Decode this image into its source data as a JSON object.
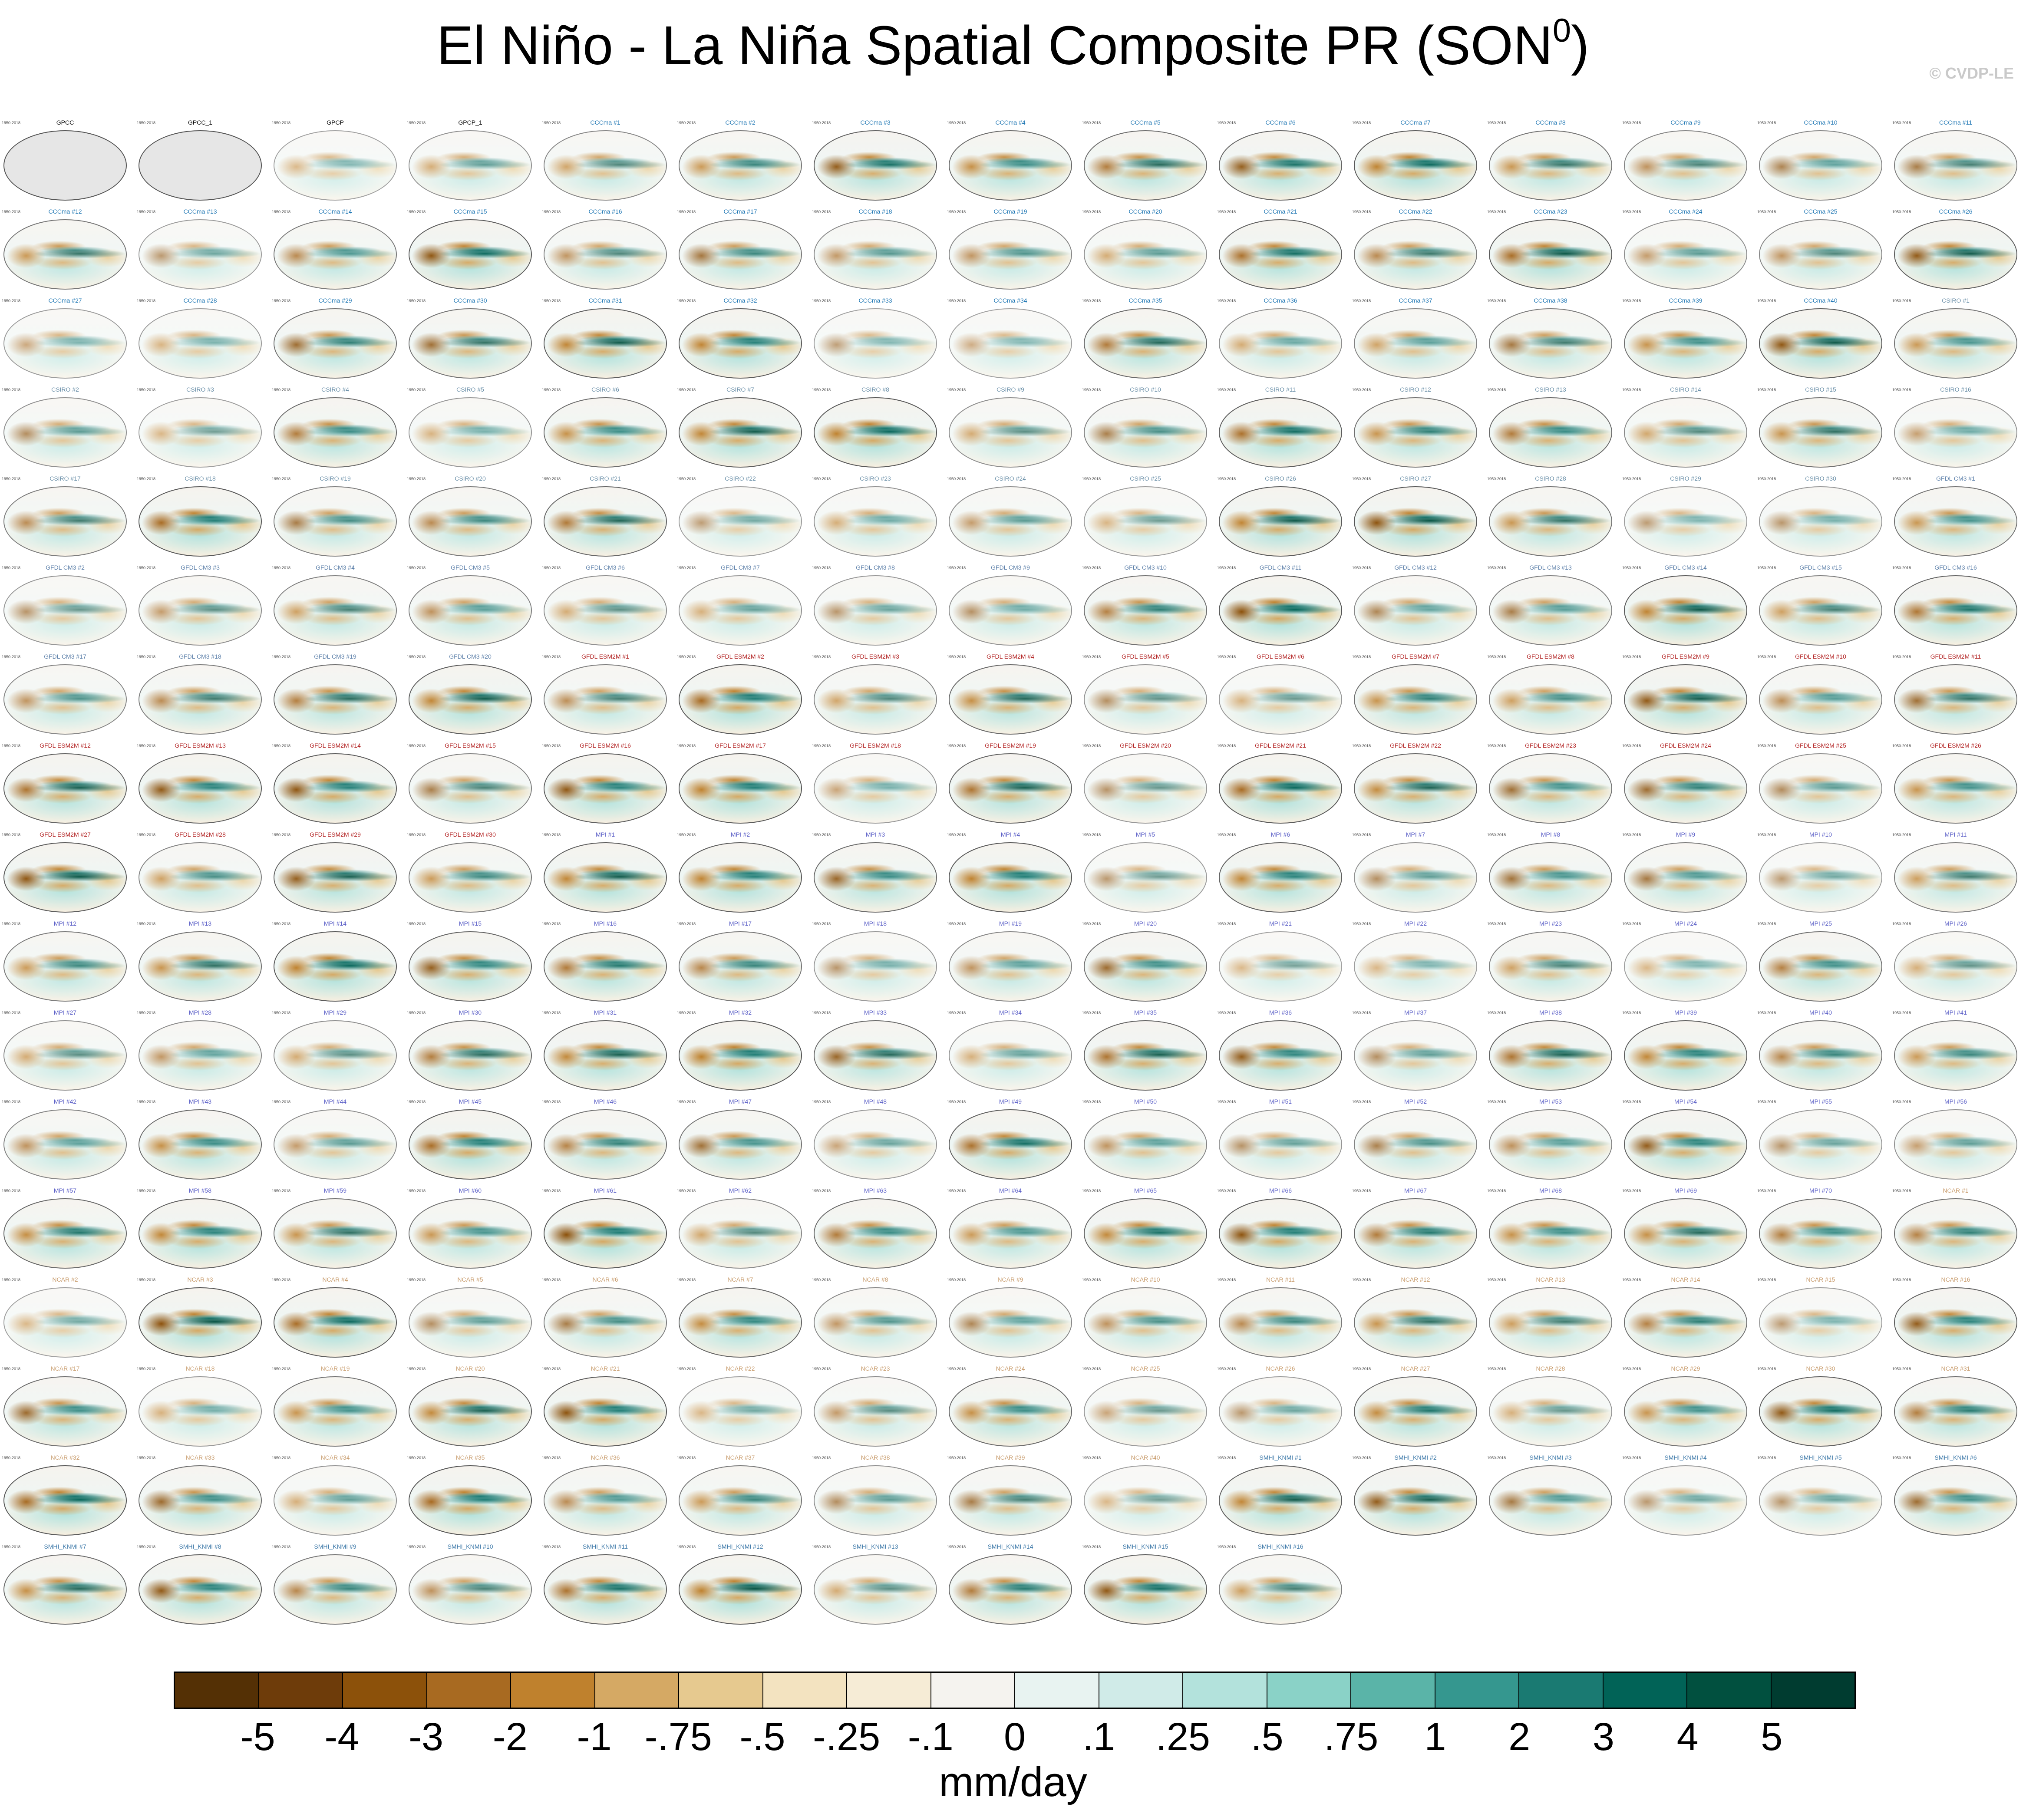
{
  "chart_data": {
    "type": "heatmap",
    "title": "El Niño - La Niña Spatial Composite PR (SON",
    "title_superscript": "0",
    "title_close": ")",
    "watermark": "© CVDP-LE",
    "variable": "PR",
    "season": "SON",
    "units": "mm/day",
    "colorbar": {
      "levels": [
        "-5",
        "-4",
        "-3",
        "-2",
        "-1",
        "-.75",
        "-.5",
        "-.25",
        "-.1",
        "0",
        ".1",
        ".25",
        ".5",
        ".75",
        "1",
        "2",
        "3",
        "4",
        "5"
      ],
      "colors": [
        "#543005",
        "#6e3c0a",
        "#8c510a",
        "#a86a21",
        "#bf812d",
        "#d5a964",
        "#e6c98f",
        "#f3e3c0",
        "#f6ecd6",
        "#f5f3ef",
        "#e8f3f1",
        "#d0ebe8",
        "#b3e2dc",
        "#8ad2c7",
        "#5ab4a8",
        "#35978f",
        "#1a7a72",
        "#016357",
        "#01503f",
        "#003c30"
      ]
    },
    "panel_period": "1950-2018",
    "panels": [
      {
        "title": "GPCC",
        "group": "obs"
      },
      {
        "title": "GPCC_1",
        "group": "obs"
      },
      {
        "title": "GPCP",
        "group": "obs"
      },
      {
        "title": "GPCP_1",
        "group": "obs"
      },
      {
        "title": "CCCma #1",
        "group": "cccma"
      },
      {
        "title": "CCCma #2",
        "group": "cccma"
      },
      {
        "title": "CCCma #3",
        "group": "cccma"
      },
      {
        "title": "CCCma #4",
        "group": "cccma"
      },
      {
        "title": "CCCma #5",
        "group": "cccma"
      },
      {
        "title": "CCCma #6",
        "group": "cccma"
      },
      {
        "title": "CCCma #7",
        "group": "cccma"
      },
      {
        "title": "CCCma #8",
        "group": "cccma"
      },
      {
        "title": "CCCma #9",
        "group": "cccma"
      },
      {
        "title": "CCCma #10",
        "group": "cccma"
      },
      {
        "title": "CCCma #11",
        "group": "cccma"
      },
      {
        "title": "CCCma #12",
        "group": "cccma"
      },
      {
        "title": "CCCma #13",
        "group": "cccma"
      },
      {
        "title": "CCCma #14",
        "group": "cccma"
      },
      {
        "title": "CCCma #15",
        "group": "cccma"
      },
      {
        "title": "CCCma #16",
        "group": "cccma"
      },
      {
        "title": "CCCma #17",
        "group": "cccma"
      },
      {
        "title": "CCCma #18",
        "group": "cccma"
      },
      {
        "title": "CCCma #19",
        "group": "cccma"
      },
      {
        "title": "CCCma #20",
        "group": "cccma"
      },
      {
        "title": "CCCma #21",
        "group": "cccma"
      },
      {
        "title": "CCCma #22",
        "group": "cccma"
      },
      {
        "title": "CCCma #23",
        "group": "cccma"
      },
      {
        "title": "CCCma #24",
        "group": "cccma"
      },
      {
        "title": "CCCma #25",
        "group": "cccma"
      },
      {
        "title": "CCCma #26",
        "group": "cccma"
      },
      {
        "title": "CCCma #27",
        "group": "cccma"
      },
      {
        "title": "CCCma #28",
        "group": "cccma"
      },
      {
        "title": "CCCma #29",
        "group": "cccma"
      },
      {
        "title": "CCCma #30",
        "group": "cccma"
      },
      {
        "title": "CCCma #31",
        "group": "cccma"
      },
      {
        "title": "CCCma #32",
        "group": "cccma"
      },
      {
        "title": "CCCma #33",
        "group": "cccma"
      },
      {
        "title": "CCCma #34",
        "group": "cccma"
      },
      {
        "title": "CCCma #35",
        "group": "cccma"
      },
      {
        "title": "CCCma #36",
        "group": "cccma"
      },
      {
        "title": "CCCma #37",
        "group": "cccma"
      },
      {
        "title": "CCCma #38",
        "group": "cccma"
      },
      {
        "title": "CCCma #39",
        "group": "cccma"
      },
      {
        "title": "CCCma #40",
        "group": "cccma"
      },
      {
        "title": "CSIRO #1",
        "group": "csiro"
      },
      {
        "title": "CSIRO #2",
        "group": "csiro"
      },
      {
        "title": "CSIRO #3",
        "group": "csiro"
      },
      {
        "title": "CSIRO #4",
        "group": "csiro"
      },
      {
        "title": "CSIRO #5",
        "group": "csiro"
      },
      {
        "title": "CSIRO #6",
        "group": "csiro"
      },
      {
        "title": "CSIRO #7",
        "group": "csiro"
      },
      {
        "title": "CSIRO #8",
        "group": "csiro"
      },
      {
        "title": "CSIRO #9",
        "group": "csiro"
      },
      {
        "title": "CSIRO #10",
        "group": "csiro"
      },
      {
        "title": "CSIRO #11",
        "group": "csiro"
      },
      {
        "title": "CSIRO #12",
        "group": "csiro"
      },
      {
        "title": "CSIRO #13",
        "group": "csiro"
      },
      {
        "title": "CSIRO #14",
        "group": "csiro"
      },
      {
        "title": "CSIRO #15",
        "group": "csiro"
      },
      {
        "title": "CSIRO #16",
        "group": "csiro"
      },
      {
        "title": "CSIRO #17",
        "group": "csiro"
      },
      {
        "title": "CSIRO #18",
        "group": "csiro"
      },
      {
        "title": "CSIRO #19",
        "group": "csiro"
      },
      {
        "title": "CSIRO #20",
        "group": "csiro"
      },
      {
        "title": "CSIRO #21",
        "group": "csiro"
      },
      {
        "title": "CSIRO #22",
        "group": "csiro"
      },
      {
        "title": "CSIRO #23",
        "group": "csiro"
      },
      {
        "title": "CSIRO #24",
        "group": "csiro"
      },
      {
        "title": "CSIRO #25",
        "group": "csiro"
      },
      {
        "title": "CSIRO #26",
        "group": "csiro"
      },
      {
        "title": "CSIRO #27",
        "group": "csiro"
      },
      {
        "title": "CSIRO #28",
        "group": "csiro"
      },
      {
        "title": "CSIRO #29",
        "group": "csiro"
      },
      {
        "title": "CSIRO #30",
        "group": "csiro"
      },
      {
        "title": "GFDL CM3 #1",
        "group": "gfdlcm3"
      },
      {
        "title": "GFDL CM3 #2",
        "group": "gfdlcm3"
      },
      {
        "title": "GFDL CM3 #3",
        "group": "gfdlcm3"
      },
      {
        "title": "GFDL CM3 #4",
        "group": "gfdlcm3"
      },
      {
        "title": "GFDL CM3 #5",
        "group": "gfdlcm3"
      },
      {
        "title": "GFDL CM3 #6",
        "group": "gfdlcm3"
      },
      {
        "title": "GFDL CM3 #7",
        "group": "gfdlcm3"
      },
      {
        "title": "GFDL CM3 #8",
        "group": "gfdlcm3"
      },
      {
        "title": "GFDL CM3 #9",
        "group": "gfdlcm3"
      },
      {
        "title": "GFDL CM3 #10",
        "group": "gfdlcm3"
      },
      {
        "title": "GFDL CM3 #11",
        "group": "gfdlcm3"
      },
      {
        "title": "GFDL CM3 #12",
        "group": "gfdlcm3"
      },
      {
        "title": "GFDL CM3 #13",
        "group": "gfdlcm3"
      },
      {
        "title": "GFDL CM3 #14",
        "group": "gfdlcm3"
      },
      {
        "title": "GFDL CM3 #15",
        "group": "gfdlcm3"
      },
      {
        "title": "GFDL CM3 #16",
        "group": "gfdlcm3"
      },
      {
        "title": "GFDL CM3 #17",
        "group": "gfdlcm3"
      },
      {
        "title": "GFDL CM3 #18",
        "group": "gfdlcm3"
      },
      {
        "title": "GFDL CM3 #19",
        "group": "gfdlcm3"
      },
      {
        "title": "GFDL CM3 #20",
        "group": "gfdlcm3"
      },
      {
        "title": "GFDL ESM2M #1",
        "group": "gfdlesm"
      },
      {
        "title": "GFDL ESM2M #2",
        "group": "gfdlesm"
      },
      {
        "title": "GFDL ESM2M #3",
        "group": "gfdlesm"
      },
      {
        "title": "GFDL ESM2M #4",
        "group": "gfdlesm"
      },
      {
        "title": "GFDL ESM2M #5",
        "group": "gfdlesm"
      },
      {
        "title": "GFDL ESM2M #6",
        "group": "gfdlesm"
      },
      {
        "title": "GFDL ESM2M #7",
        "group": "gfdlesm"
      },
      {
        "title": "GFDL ESM2M #8",
        "group": "gfdlesm"
      },
      {
        "title": "GFDL ESM2M #9",
        "group": "gfdlesm"
      },
      {
        "title": "GFDL ESM2M #10",
        "group": "gfdlesm"
      },
      {
        "title": "GFDL ESM2M #11",
        "group": "gfdlesm"
      },
      {
        "title": "GFDL ESM2M #12",
        "group": "gfdlesm"
      },
      {
        "title": "GFDL ESM2M #13",
        "group": "gfdlesm"
      },
      {
        "title": "GFDL ESM2M #14",
        "group": "gfdlesm"
      },
      {
        "title": "GFDL ESM2M #15",
        "group": "gfdlesm"
      },
      {
        "title": "GFDL ESM2M #16",
        "group": "gfdlesm"
      },
      {
        "title": "GFDL ESM2M #17",
        "group": "gfdlesm"
      },
      {
        "title": "GFDL ESM2M #18",
        "group": "gfdlesm"
      },
      {
        "title": "GFDL ESM2M #19",
        "group": "gfdlesm"
      },
      {
        "title": "GFDL ESM2M #20",
        "group": "gfdlesm"
      },
      {
        "title": "GFDL ESM2M #21",
        "group": "gfdlesm"
      },
      {
        "title": "GFDL ESM2M #22",
        "group": "gfdlesm"
      },
      {
        "title": "GFDL ESM2M #23",
        "group": "gfdlesm"
      },
      {
        "title": "GFDL ESM2M #24",
        "group": "gfdlesm"
      },
      {
        "title": "GFDL ESM2M #25",
        "group": "gfdlesm"
      },
      {
        "title": "GFDL ESM2M #26",
        "group": "gfdlesm"
      },
      {
        "title": "GFDL ESM2M #27",
        "group": "gfdlesm"
      },
      {
        "title": "GFDL ESM2M #28",
        "group": "gfdlesm"
      },
      {
        "title": "GFDL ESM2M #29",
        "group": "gfdlesm"
      },
      {
        "title": "GFDL ESM2M #30",
        "group": "gfdlesm"
      },
      {
        "title": "MPI #1",
        "group": "mpi"
      },
      {
        "title": "MPI #2",
        "group": "mpi"
      },
      {
        "title": "MPI #3",
        "group": "mpi"
      },
      {
        "title": "MPI #4",
        "group": "mpi"
      },
      {
        "title": "MPI #5",
        "group": "mpi"
      },
      {
        "title": "MPI #6",
        "group": "mpi"
      },
      {
        "title": "MPI #7",
        "group": "mpi"
      },
      {
        "title": "MPI #8",
        "group": "mpi"
      },
      {
        "title": "MPI #9",
        "group": "mpi"
      },
      {
        "title": "MPI #10",
        "group": "mpi"
      },
      {
        "title": "MPI #11",
        "group": "mpi"
      },
      {
        "title": "MPI #12",
        "group": "mpi"
      },
      {
        "title": "MPI #13",
        "group": "mpi"
      },
      {
        "title": "MPI #14",
        "group": "mpi"
      },
      {
        "title": "MPI #15",
        "group": "mpi"
      },
      {
        "title": "MPI #16",
        "group": "mpi"
      },
      {
        "title": "MPI #17",
        "group": "mpi"
      },
      {
        "title": "MPI #18",
        "group": "mpi"
      },
      {
        "title": "MPI #19",
        "group": "mpi"
      },
      {
        "title": "MPI #20",
        "group": "mpi"
      },
      {
        "title": "MPI #21",
        "group": "mpi"
      },
      {
        "title": "MPI #22",
        "group": "mpi"
      },
      {
        "title": "MPI #23",
        "group": "mpi"
      },
      {
        "title": "MPI #24",
        "group": "mpi"
      },
      {
        "title": "MPI #25",
        "group": "mpi"
      },
      {
        "title": "MPI #26",
        "group": "mpi"
      },
      {
        "title": "MPI #27",
        "group": "mpi"
      },
      {
        "title": "MPI #28",
        "group": "mpi"
      },
      {
        "title": "MPI #29",
        "group": "mpi"
      },
      {
        "title": "MPI #30",
        "group": "mpi"
      },
      {
        "title": "MPI #31",
        "group": "mpi"
      },
      {
        "title": "MPI #32",
        "group": "mpi"
      },
      {
        "title": "MPI #33",
        "group": "mpi"
      },
      {
        "title": "MPI #34",
        "group": "mpi"
      },
      {
        "title": "MPI #35",
        "group": "mpi"
      },
      {
        "title": "MPI #36",
        "group": "mpi"
      },
      {
        "title": "MPI #37",
        "group": "mpi"
      },
      {
        "title": "MPI #38",
        "group": "mpi"
      },
      {
        "title": "MPI #39",
        "group": "mpi"
      },
      {
        "title": "MPI #40",
        "group": "mpi"
      },
      {
        "title": "MPI #41",
        "group": "mpi"
      },
      {
        "title": "MPI #42",
        "group": "mpi"
      },
      {
        "title": "MPI #43",
        "group": "mpi"
      },
      {
        "title": "MPI #44",
        "group": "mpi"
      },
      {
        "title": "MPI #45",
        "group": "mpi"
      },
      {
        "title": "MPI #46",
        "group": "mpi"
      },
      {
        "title": "MPI #47",
        "group": "mpi"
      },
      {
        "title": "MPI #48",
        "group": "mpi"
      },
      {
        "title": "MPI #49",
        "group": "mpi"
      },
      {
        "title": "MPI #50",
        "group": "mpi"
      },
      {
        "title": "MPI #51",
        "group": "mpi"
      },
      {
        "title": "MPI #52",
        "group": "mpi"
      },
      {
        "title": "MPI #53",
        "group": "mpi"
      },
      {
        "title": "MPI #54",
        "group": "mpi"
      },
      {
        "title": "MPI #55",
        "group": "mpi"
      },
      {
        "title": "MPI #56",
        "group": "mpi"
      },
      {
        "title": "MPI #57",
        "group": "mpi"
      },
      {
        "title": "MPI #58",
        "group": "mpi"
      },
      {
        "title": "MPI #59",
        "group": "mpi"
      },
      {
        "title": "MPI #60",
        "group": "mpi"
      },
      {
        "title": "MPI #61",
        "group": "mpi"
      },
      {
        "title": "MPI #62",
        "group": "mpi"
      },
      {
        "title": "MPI #63",
        "group": "mpi"
      },
      {
        "title": "MPI #64",
        "group": "mpi"
      },
      {
        "title": "MPI #65",
        "group": "mpi"
      },
      {
        "title": "MPI #66",
        "group": "mpi"
      },
      {
        "title": "MPI #67",
        "group": "mpi"
      },
      {
        "title": "MPI #68",
        "group": "mpi"
      },
      {
        "title": "MPI #69",
        "group": "mpi"
      },
      {
        "title": "MPI #70",
        "group": "mpi"
      },
      {
        "title": "NCAR #1",
        "group": "ncar"
      },
      {
        "title": "NCAR #2",
        "group": "ncar"
      },
      {
        "title": "NCAR #3",
        "group": "ncar"
      },
      {
        "title": "NCAR #4",
        "group": "ncar"
      },
      {
        "title": "NCAR #5",
        "group": "ncar"
      },
      {
        "title": "NCAR #6",
        "group": "ncar"
      },
      {
        "title": "NCAR #7",
        "group": "ncar"
      },
      {
        "title": "NCAR #8",
        "group": "ncar"
      },
      {
        "title": "NCAR #9",
        "group": "ncar"
      },
      {
        "title": "NCAR #10",
        "group": "ncar"
      },
      {
        "title": "NCAR #11",
        "group": "ncar"
      },
      {
        "title": "NCAR #12",
        "group": "ncar"
      },
      {
        "title": "NCAR #13",
        "group": "ncar"
      },
      {
        "title": "NCAR #14",
        "group": "ncar"
      },
      {
        "title": "NCAR #15",
        "group": "ncar"
      },
      {
        "title": "NCAR #16",
        "group": "ncar"
      },
      {
        "title": "NCAR #17",
        "group": "ncar"
      },
      {
        "title": "NCAR #18",
        "group": "ncar"
      },
      {
        "title": "NCAR #19",
        "group": "ncar"
      },
      {
        "title": "NCAR #20",
        "group": "ncar"
      },
      {
        "title": "NCAR #21",
        "group": "ncar"
      },
      {
        "title": "NCAR #22",
        "group": "ncar"
      },
      {
        "title": "NCAR #23",
        "group": "ncar"
      },
      {
        "title": "NCAR #24",
        "group": "ncar"
      },
      {
        "title": "NCAR #25",
        "group": "ncar"
      },
      {
        "title": "NCAR #26",
        "group": "ncar"
      },
      {
        "title": "NCAR #27",
        "group": "ncar"
      },
      {
        "title": "NCAR #28",
        "group": "ncar"
      },
      {
        "title": "NCAR #29",
        "group": "ncar"
      },
      {
        "title": "NCAR #30",
        "group": "ncar"
      },
      {
        "title": "NCAR #31",
        "group": "ncar"
      },
      {
        "title": "NCAR #32",
        "group": "ncar"
      },
      {
        "title": "NCAR #33",
        "group": "ncar"
      },
      {
        "title": "NCAR #34",
        "group": "ncar"
      },
      {
        "title": "NCAR #35",
        "group": "ncar"
      },
      {
        "title": "NCAR #36",
        "group": "ncar"
      },
      {
        "title": "NCAR #37",
        "group": "ncar"
      },
      {
        "title": "NCAR #38",
        "group": "ncar"
      },
      {
        "title": "NCAR #39",
        "group": "ncar"
      },
      {
        "title": "NCAR #40",
        "group": "ncar"
      },
      {
        "title": "SMHI_KNMI #1",
        "group": "smhi"
      },
      {
        "title": "SMHI_KNMI #2",
        "group": "smhi"
      },
      {
        "title": "SMHI_KNMI #3",
        "group": "smhi"
      },
      {
        "title": "SMHI_KNMI #4",
        "group": "smhi"
      },
      {
        "title": "SMHI_KNMI #5",
        "group": "smhi"
      },
      {
        "title": "SMHI_KNMI #6",
        "group": "smhi"
      },
      {
        "title": "SMHI_KNMI #7",
        "group": "smhi"
      },
      {
        "title": "SMHI_KNMI #8",
        "group": "smhi"
      },
      {
        "title": "SMHI_KNMI #9",
        "group": "smhi"
      },
      {
        "title": "SMHI_KNMI #10",
        "group": "smhi"
      },
      {
        "title": "SMHI_KNMI #11",
        "group": "smhi"
      },
      {
        "title": "SMHI_KNMI #12",
        "group": "smhi"
      },
      {
        "title": "SMHI_KNMI #13",
        "group": "smhi"
      },
      {
        "title": "SMHI_KNMI #14",
        "group": "smhi"
      },
      {
        "title": "SMHI_KNMI #15",
        "group": "smhi"
      },
      {
        "title": "SMHI_KNMI #16",
        "group": "smhi"
      }
    ],
    "group_colors": {
      "obs": "#000000",
      "cccma": "#1f77b4",
      "csiro": "#6a8fa8",
      "gfdlcm3": "#5a7ea8",
      "gfdlesm": "#b22222",
      "mpi": "#5b5fc7",
      "ncar": "#c79a6a",
      "smhi": "#3c78a8"
    }
  }
}
